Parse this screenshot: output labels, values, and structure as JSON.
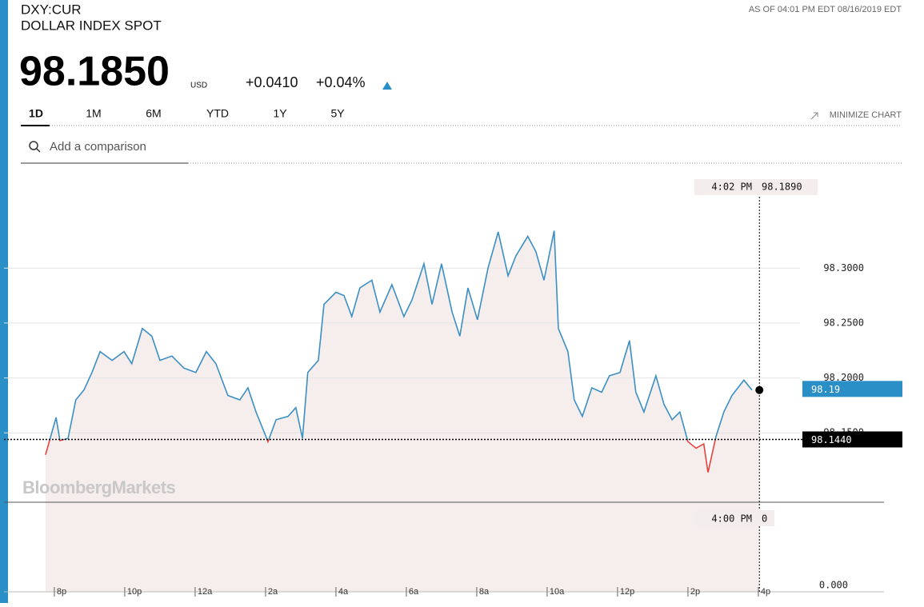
{
  "header": {
    "symbol": "DXY:CUR",
    "name": "DOLLAR INDEX SPOT",
    "as_of": "AS OF 04:01 PM EDT 08/16/2019 EDT",
    "price": "98.1850",
    "currency": "USD",
    "change": "+0.0410",
    "change_pct": "+0.04%"
  },
  "tabs": [
    "1D",
    "1M",
    "6M",
    "YTD",
    "1Y",
    "5Y"
  ],
  "minimize": "MINIMIZE CHART",
  "search_placeholder": "Add a comparison",
  "watermark": "BloombergMarkets",
  "chart_data": {
    "type": "line",
    "x": [
      19.75,
      20.05,
      20.16,
      20.39,
      20.61,
      20.84,
      21.07,
      21.3,
      21.64,
      21.98,
      22.2,
      22.5,
      22.77,
      23.0,
      23.34,
      23.68,
      24.02,
      24.32,
      24.59,
      24.93,
      25.27,
      25.5,
      25.73,
      26.07,
      26.3,
      26.64,
      26.86,
      27.05,
      27.2,
      27.5,
      27.66,
      28.0,
      28.23,
      28.45,
      28.68,
      29.02,
      29.25,
      29.59,
      29.93,
      30.16,
      30.5,
      30.73,
      31.0,
      31.3,
      31.52,
      31.75,
      32.02,
      32.32,
      32.61,
      32.89,
      33.11,
      33.45,
      33.68,
      33.91,
      34.2,
      34.32,
      34.59,
      34.77,
      35.0,
      35.27,
      35.55,
      35.77,
      36.07,
      36.34,
      36.52,
      36.75,
      37.09,
      37.32,
      37.55,
      37.77,
      38.0,
      38.23,
      38.45,
      38.57,
      38.8,
      39.02,
      39.25,
      39.59,
      39.82
    ],
    "series": [
      {
        "color": "#3a8fc3",
        "below_color": "#e8413c",
        "values": [
          98.13,
          98.164,
          98.143,
          98.145,
          98.18,
          98.189,
          98.205,
          98.224,
          98.216,
          98.224,
          98.213,
          98.245,
          98.238,
          98.216,
          98.22,
          98.209,
          98.205,
          98.224,
          98.213,
          98.184,
          98.18,
          98.191,
          98.169,
          98.142,
          98.162,
          98.165,
          98.173,
          98.145,
          98.205,
          98.216,
          98.267,
          98.278,
          98.275,
          98.256,
          98.282,
          98.289,
          98.26,
          98.285,
          98.256,
          98.271,
          98.304,
          98.267,
          98.304,
          98.26,
          98.238,
          98.282,
          98.253,
          98.3,
          98.333,
          98.293,
          98.311,
          98.329,
          98.315,
          98.289,
          98.334,
          98.245,
          98.224,
          98.18,
          98.165,
          98.191,
          98.187,
          98.202,
          98.205,
          98.234,
          98.187,
          98.169,
          98.202,
          98.176,
          98.162,
          98.169,
          98.142,
          98.136,
          98.14,
          98.114,
          98.147,
          98.169,
          98.184,
          98.198,
          98.189
        ]
      }
    ],
    "xlim": [
      18.57,
      43.57
    ],
    "ylim": [
      98.0118,
      98.3876
    ],
    "xticks": [
      {
        "value": 20,
        "label": "8p"
      },
      {
        "value": 22,
        "label": "10p"
      },
      {
        "value": 24,
        "label": "12a"
      },
      {
        "value": 26,
        "label": "2a"
      },
      {
        "value": 28,
        "label": "4a"
      },
      {
        "value": 30,
        "label": "6a"
      },
      {
        "value": 32,
        "label": "8a"
      },
      {
        "value": 34,
        "label": "10a"
      },
      {
        "value": 36,
        "label": "12p"
      },
      {
        "value": 38,
        "label": "2p"
      },
      {
        "value": 40,
        "label": "4p"
      }
    ],
    "yticks": [
      {
        "value": 98.15,
        "label": "98.1500"
      },
      {
        "value": 98.2,
        "label": "98.2000"
      },
      {
        "value": 98.25,
        "label": "98.2500"
      },
      {
        "value": 98.3,
        "label": "98.3000"
      }
    ],
    "y_floor_label": "0.000",
    "grid": true,
    "baseline": {
      "value": 98.144,
      "label": "98.1440"
    },
    "last": {
      "value": 98.19,
      "label": "98.19"
    },
    "crosshair": {
      "x": 40.03,
      "time_label": "4:02 PM",
      "value": 98.189,
      "value_label": "98.1890"
    },
    "lower_crosshair": {
      "time_label": "4:00 PM",
      "value": 0
    }
  }
}
